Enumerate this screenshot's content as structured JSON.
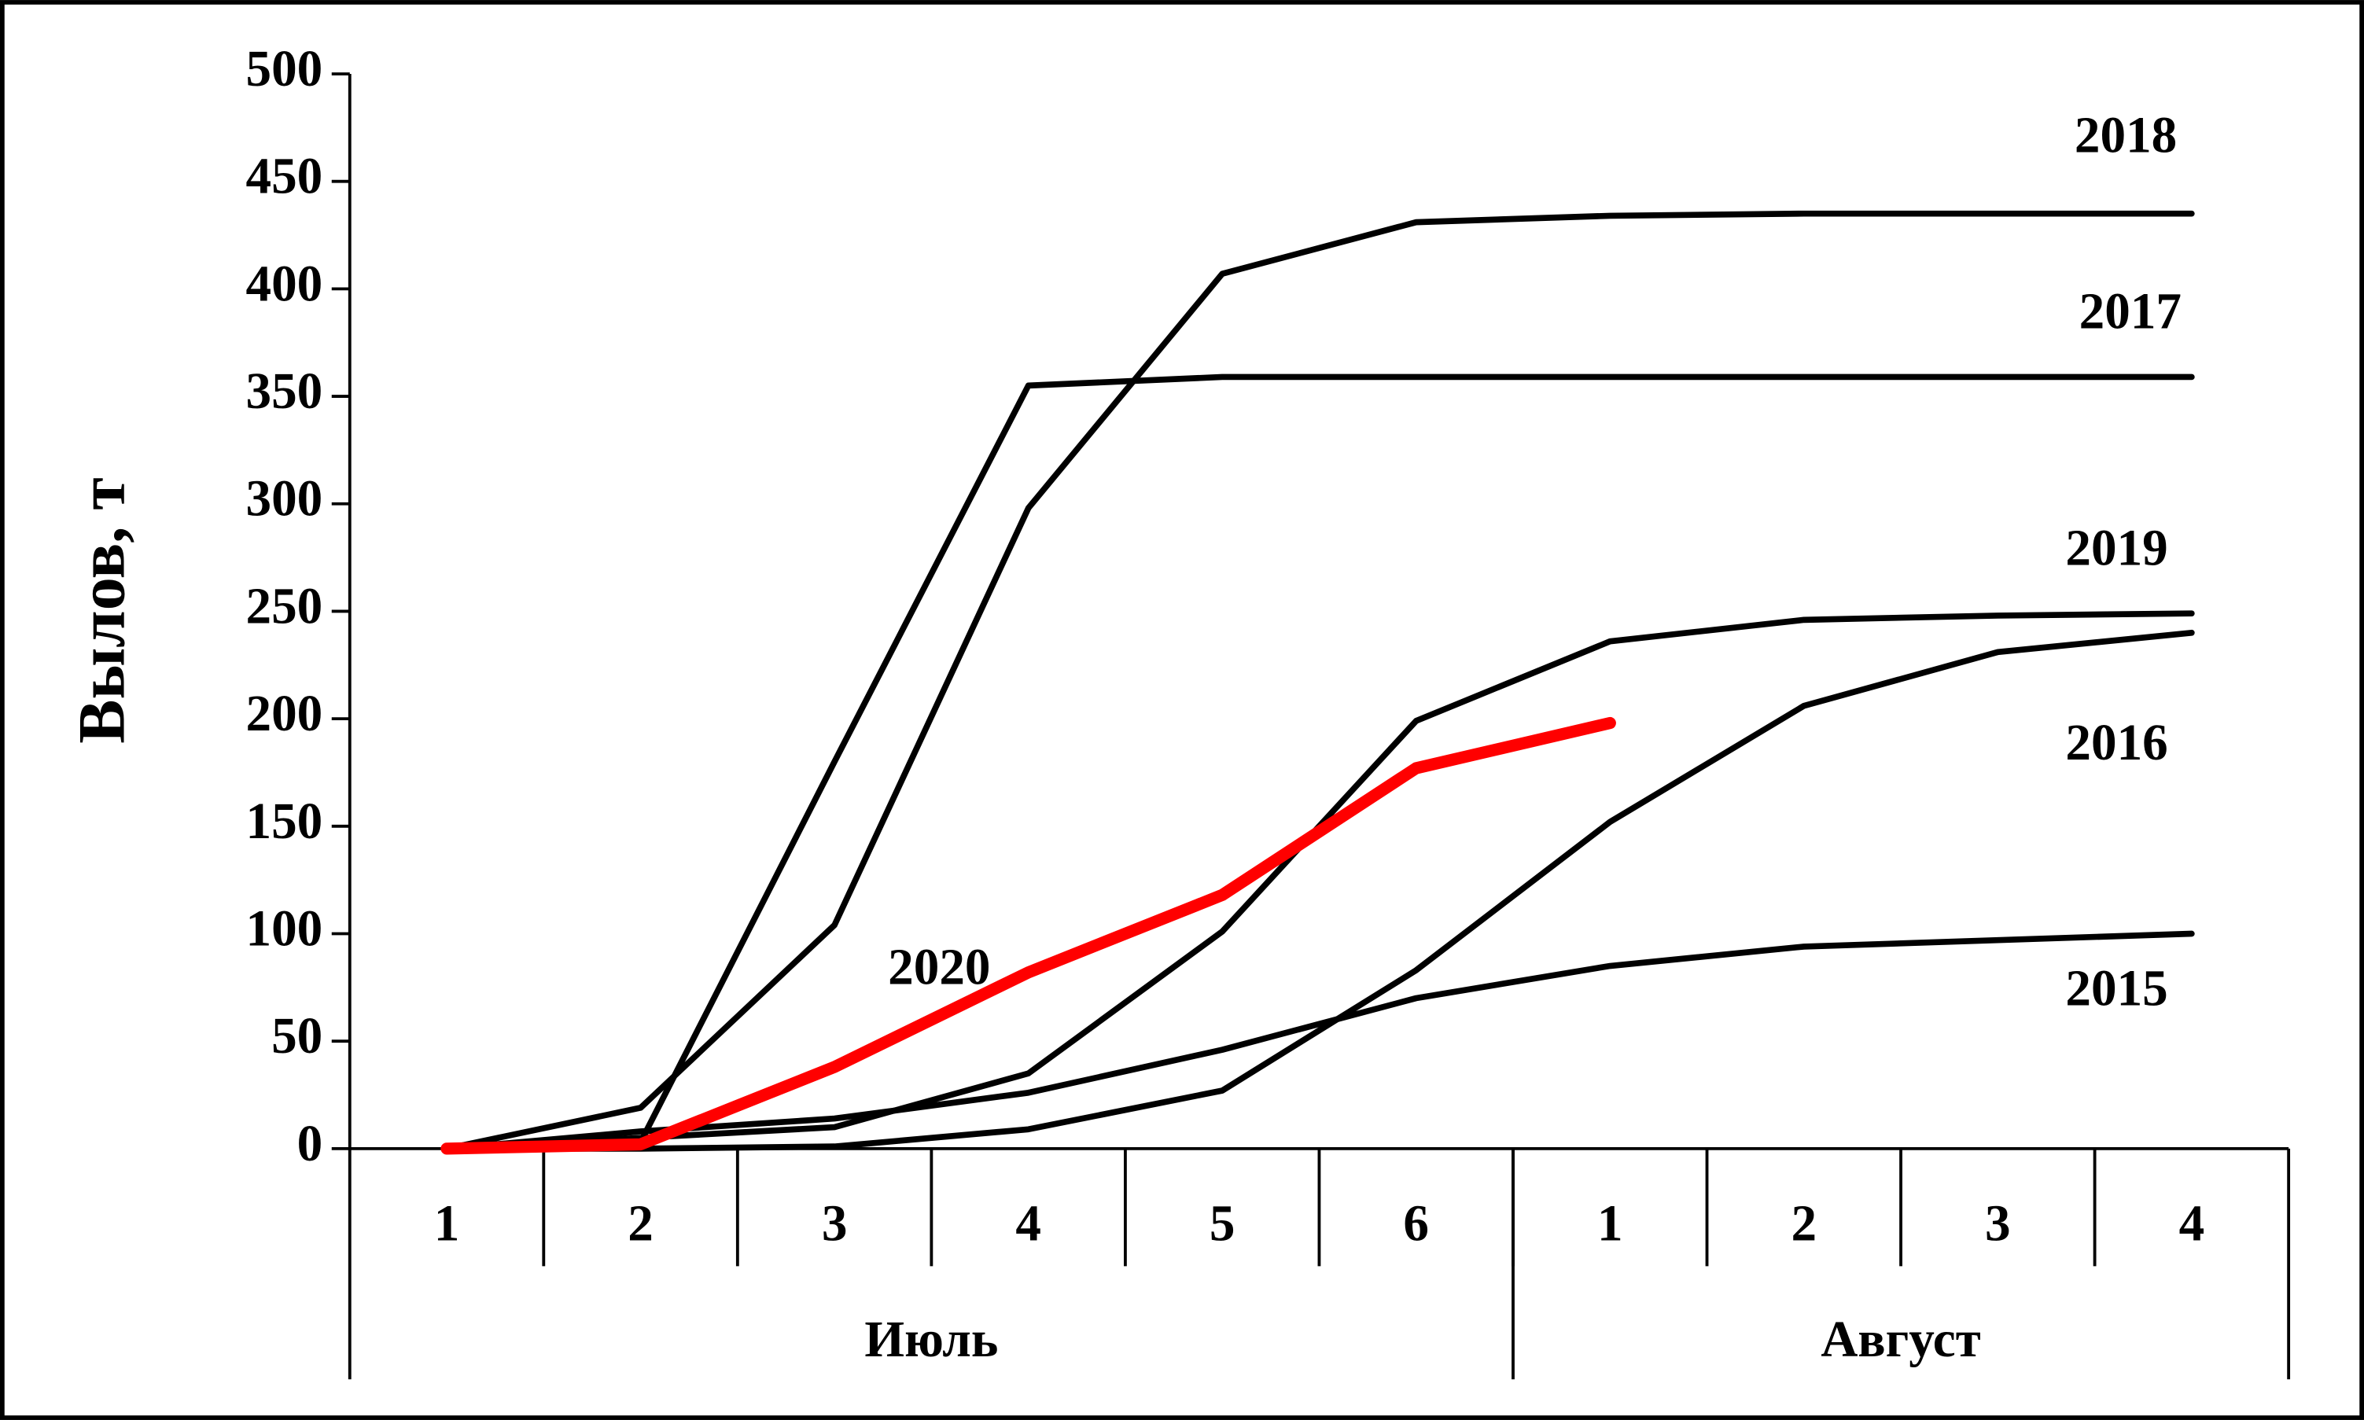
{
  "chart_data": {
    "type": "line",
    "y_label": "Вылов, т",
    "categories": [
      "1",
      "2",
      "3",
      "4",
      "5",
      "6",
      "1",
      "2",
      "3",
      "4"
    ],
    "groups": [
      {
        "label": "Июль",
        "span": 6
      },
      {
        "label": "Август",
        "span": 4
      }
    ],
    "ylim": [
      0,
      500
    ],
    "yticks": [
      0,
      50,
      100,
      150,
      200,
      250,
      300,
      350,
      400,
      450,
      500
    ],
    "series": [
      {
        "name": "2018",
        "color": "#000000",
        "values": [
          0,
          19,
          104,
          298,
          407,
          431,
          434,
          435,
          435,
          435
        ]
      },
      {
        "name": "2017",
        "color": "#000000",
        "values": [
          0,
          3,
          180,
          355,
          359,
          359,
          359,
          359,
          359,
          359
        ]
      },
      {
        "name": "2019",
        "color": "#000000",
        "values": [
          0,
          5,
          10,
          35,
          101,
          199,
          236,
          246,
          248,
          249
        ]
      },
      {
        "name": "2016",
        "color": "#000000",
        "values": [
          0,
          0,
          1,
          9,
          27,
          83,
          152,
          206,
          231,
          240
        ]
      },
      {
        "name": "2015",
        "color": "#000000",
        "values": [
          0,
          8,
          14,
          26,
          46,
          70,
          85,
          94,
          97,
          100
        ]
      },
      {
        "name": "2020",
        "color": "#ff0000",
        "values": [
          0,
          2,
          38,
          82,
          118,
          177,
          198,
          null,
          null,
          null
        ]
      }
    ]
  }
}
